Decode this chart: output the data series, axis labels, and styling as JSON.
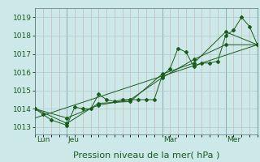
{
  "background_color": "#cce8e8",
  "grid_color_major": "#aacccc",
  "grid_color_minor": "#bbdddd",
  "line_color": "#1a5c1a",
  "marker_color": "#1a5c1a",
  "ylabel_ticks": [
    1013,
    1014,
    1015,
    1016,
    1017,
    1018,
    1019
  ],
  "ylim": [
    1012.6,
    1019.5
  ],
  "xlabel": "Pression niveau de la mer( hPa )",
  "xlabel_fontsize": 8,
  "tick_label_fontsize": 6.5,
  "day_labels": [
    "Lun",
    "Jeu",
    "Mar",
    "Mer"
  ],
  "day_positions": [
    0,
    24,
    96,
    144
  ],
  "vline_positions": [
    0,
    24,
    96,
    144
  ],
  "series1_x": [
    0,
    6,
    12,
    24,
    30,
    36,
    42,
    48,
    54,
    60,
    66,
    72,
    78,
    84,
    90,
    96,
    102,
    108,
    114,
    120,
    126,
    132,
    138,
    144,
    150,
    156,
    162,
    168
  ],
  "series1_y": [
    1014.0,
    1013.7,
    1013.4,
    1013.1,
    1014.1,
    1014.0,
    1014.0,
    1014.8,
    1014.5,
    1014.4,
    1014.5,
    1014.5,
    1014.5,
    1014.5,
    1014.5,
    1015.8,
    1016.2,
    1017.3,
    1017.1,
    1016.3,
    1016.5,
    1016.5,
    1016.6,
    1018.0,
    1018.3,
    1019.0,
    1018.5,
    1017.5
  ],
  "series2_x": [
    0,
    24,
    48,
    72,
    96,
    120,
    144,
    168
  ],
  "series2_y": [
    1014.0,
    1013.2,
    1014.3,
    1014.4,
    1015.9,
    1016.5,
    1018.2,
    1017.5
  ],
  "series3_x": [
    0,
    24,
    48,
    72,
    96,
    120,
    144,
    168
  ],
  "series3_y": [
    1014.0,
    1013.5,
    1014.2,
    1014.5,
    1015.7,
    1016.7,
    1017.5,
    1017.5
  ],
  "series4_x": [
    0,
    168
  ],
  "series4_y": [
    1013.5,
    1017.5
  ],
  "xlim": [
    0,
    168
  ]
}
